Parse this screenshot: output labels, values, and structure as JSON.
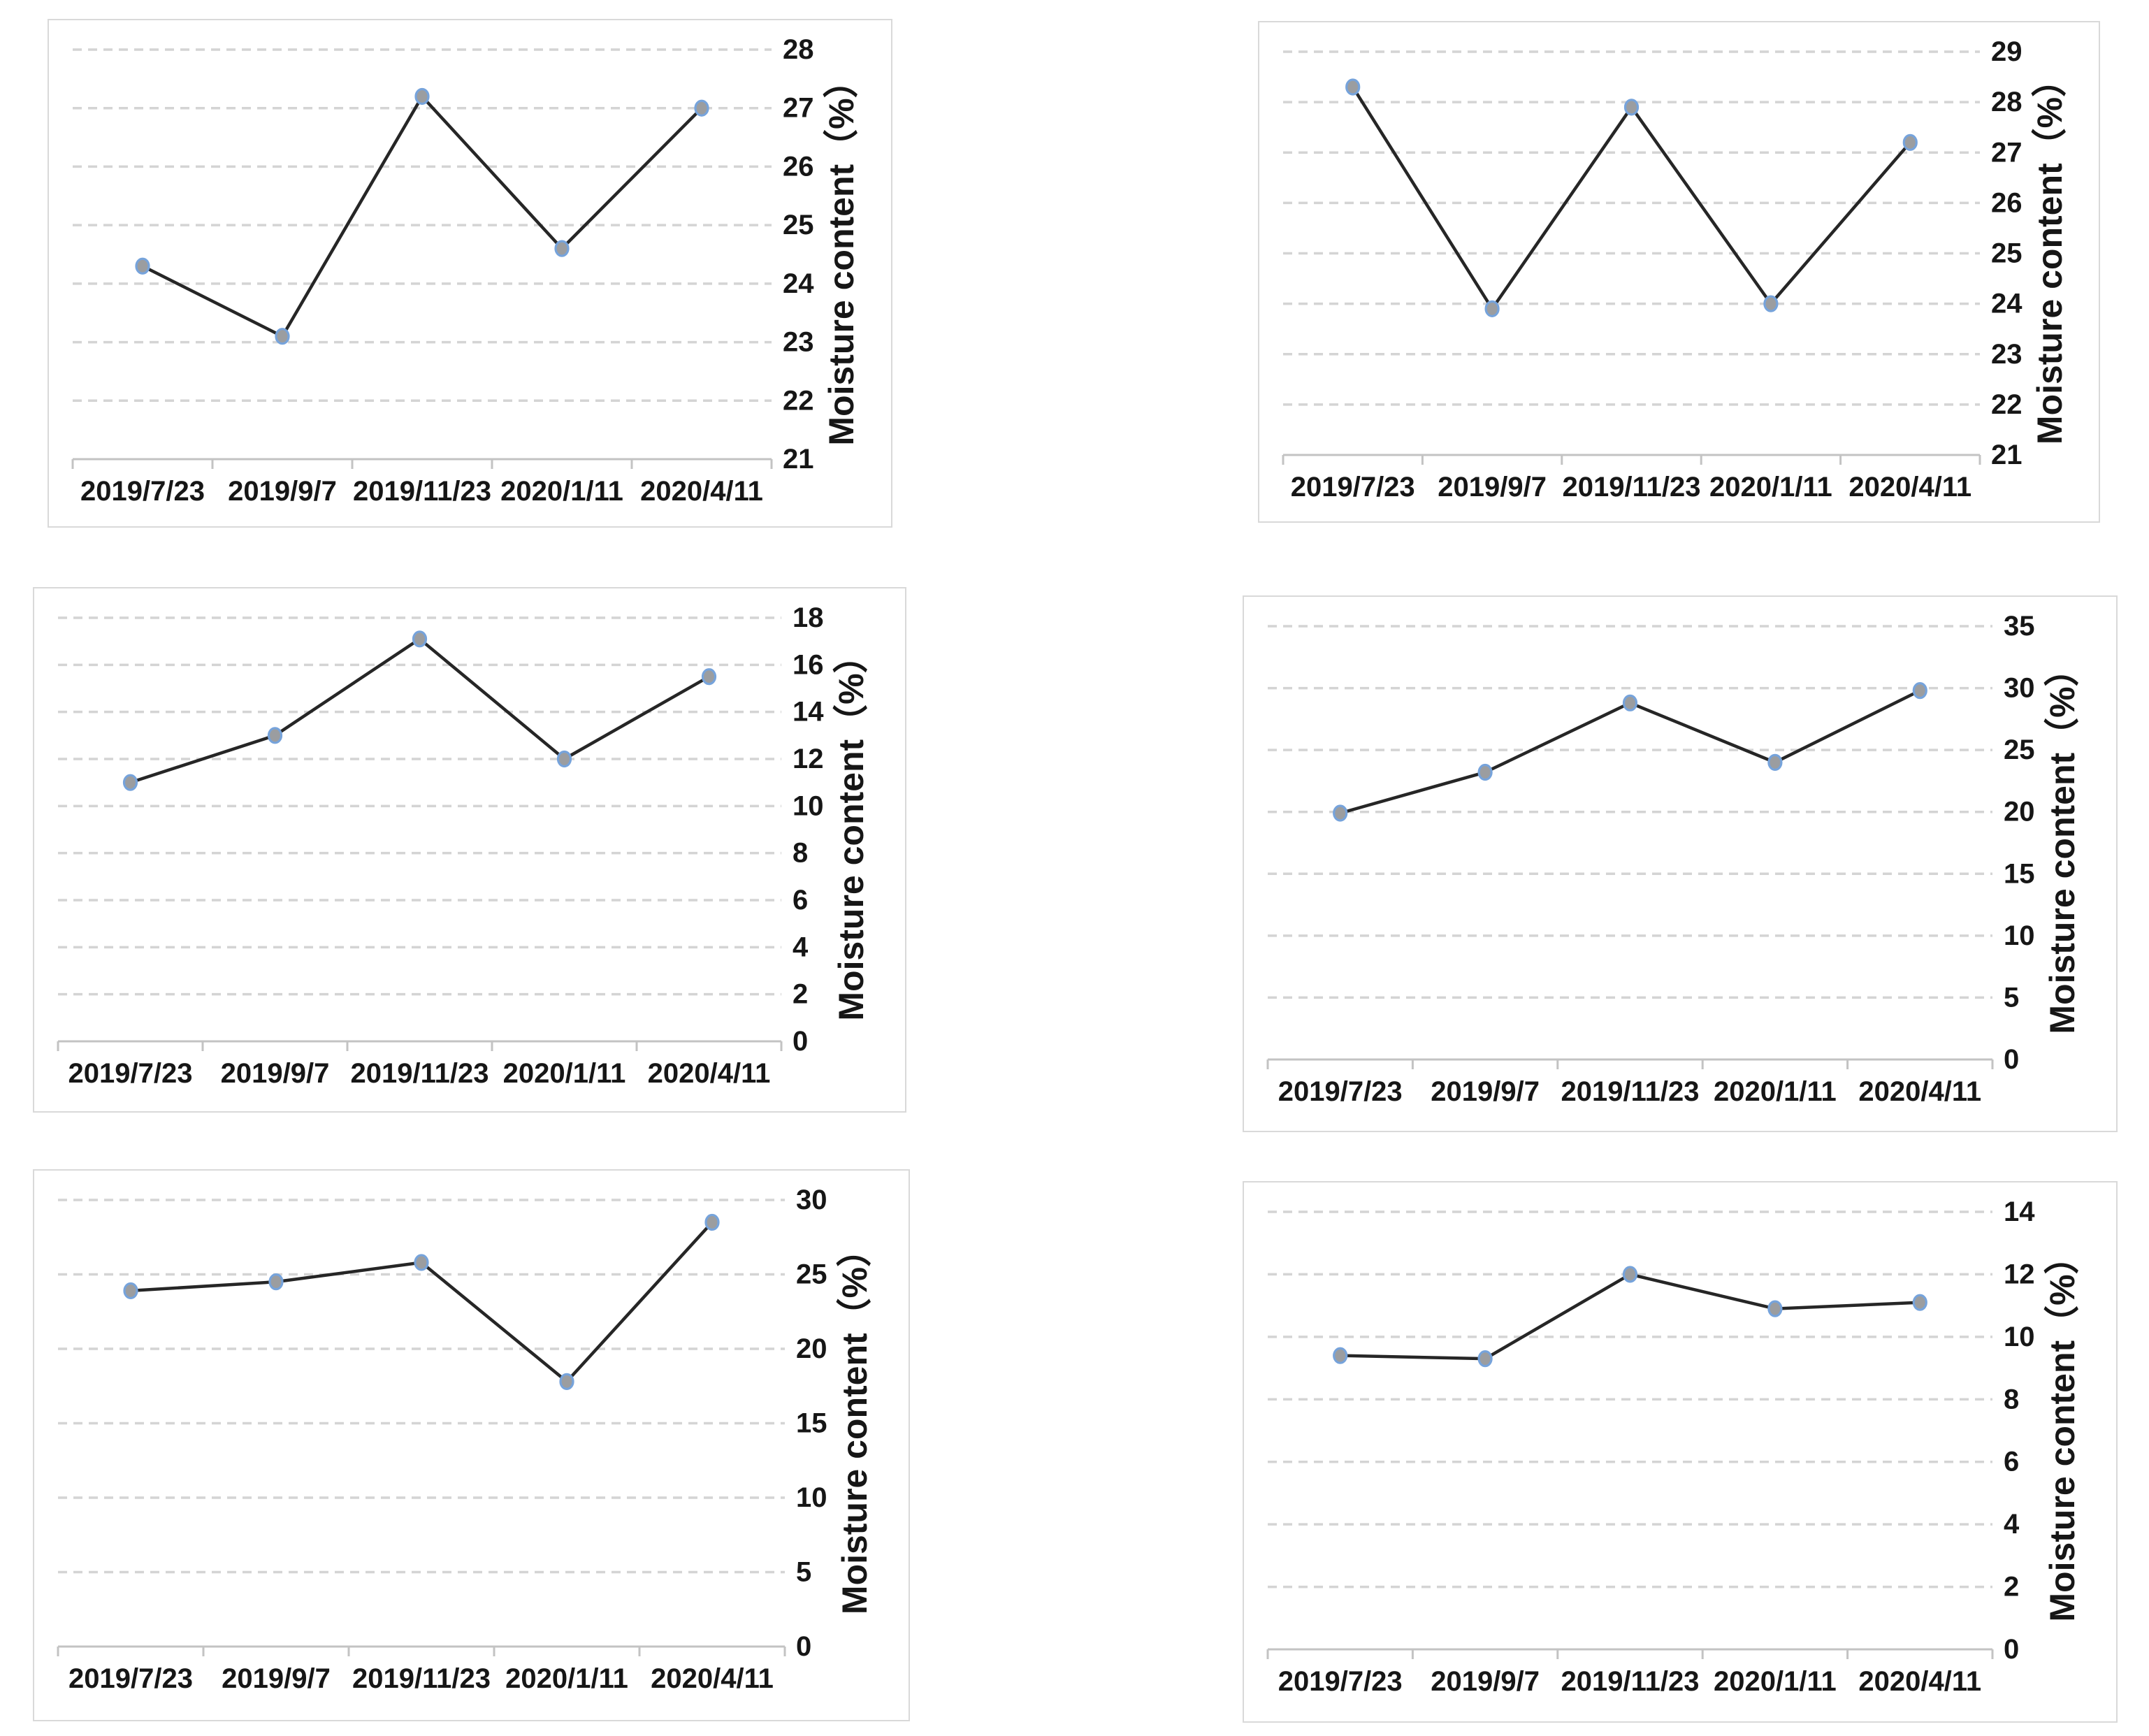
{
  "page": {
    "background": "#ffffff",
    "description": "Six line charts of moisture content (%) over five sampling dates"
  },
  "styles": {
    "series_line_color": "#262626",
    "marker_fill": "#9b9da0",
    "marker_stroke": "#76a3db",
    "gridline_color": "#d4d4d4",
    "axis_line_color": "#c3c3c3",
    "text_color": "#161616",
    "chart_border_color": "#d9d9d9"
  },
  "chart_data": [
    {
      "id": "top-left",
      "type": "line",
      "title": "",
      "categories": [
        "2019/7/23",
        "2019/9/7",
        "2019/11/23",
        "2020/1/11",
        "2020/4/11"
      ],
      "values": [
        24.3,
        23.1,
        27.2,
        24.6,
        27.0
      ],
      "xlabel": "",
      "ylabel": "Moisture content（%）",
      "ylim": [
        21,
        28
      ],
      "ystep": 1,
      "legend": "none",
      "grid": "dashed-horizontal",
      "y_axis_side": "right"
    },
    {
      "id": "top-right",
      "type": "line",
      "title": "",
      "categories": [
        "2019/7/23",
        "2019/9/7",
        "2019/11/23",
        "2020/1/11",
        "2020/4/11"
      ],
      "values": [
        28.3,
        23.9,
        27.9,
        24.0,
        27.2
      ],
      "xlabel": "",
      "ylabel": "Moisture content（%）",
      "ylim": [
        21,
        29
      ],
      "ystep": 1,
      "legend": "none",
      "grid": "dashed-horizontal",
      "y_axis_side": "right"
    },
    {
      "id": "mid-left",
      "type": "line",
      "title": "",
      "categories": [
        "2019/7/23",
        "2019/9/7",
        "2019/11/23",
        "2020/1/11",
        "2020/4/11"
      ],
      "values": [
        11.0,
        13.0,
        17.1,
        12.0,
        15.5
      ],
      "xlabel": "",
      "ylabel": "Moisture content（%）",
      "ylim": [
        0,
        18
      ],
      "ystep": 2,
      "legend": "none",
      "grid": "dashed-horizontal",
      "y_axis_side": "right"
    },
    {
      "id": "mid-right",
      "type": "line",
      "title": "",
      "categories": [
        "2019/7/23",
        "2019/9/7",
        "2019/11/23",
        "2020/1/11",
        "2020/4/11"
      ],
      "values": [
        19.9,
        23.2,
        28.8,
        24.0,
        29.8
      ],
      "xlabel": "",
      "ylabel": "Moisture content（%）",
      "ylim": [
        0,
        35
      ],
      "ystep": 5,
      "legend": "none",
      "grid": "dashed-horizontal",
      "y_axis_side": "right"
    },
    {
      "id": "bottom-left",
      "type": "line",
      "title": "",
      "categories": [
        "2019/7/23",
        "2019/9/7",
        "2019/11/23",
        "2020/1/11",
        "2020/4/11"
      ],
      "values": [
        23.9,
        24.5,
        25.8,
        17.8,
        28.5
      ],
      "xlabel": "",
      "ylabel": "Moisture content（%）",
      "ylim": [
        0,
        30
      ],
      "ystep": 5,
      "legend": "none",
      "grid": "dashed-horizontal",
      "y_axis_side": "right"
    },
    {
      "id": "bottom-right",
      "type": "line",
      "title": "",
      "categories": [
        "2019/7/23",
        "2019/9/7",
        "2019/11/23",
        "2020/1/11",
        "2020/4/11"
      ],
      "values": [
        9.4,
        9.3,
        12.0,
        10.9,
        11.1
      ],
      "xlabel": "",
      "ylabel": "Moisture content（%）",
      "ylim": [
        0,
        14
      ],
      "ystep": 2,
      "legend": "none",
      "grid": "dashed-horizontal",
      "y_axis_side": "right"
    }
  ]
}
